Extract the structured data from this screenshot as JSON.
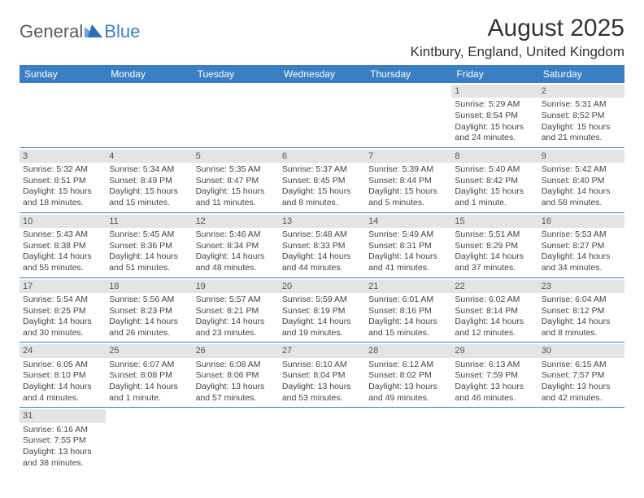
{
  "logo": {
    "text1": "General",
    "text2": "Blue"
  },
  "title": "August 2025",
  "location": "Kintbury, England, United Kingdom",
  "colors": {
    "header_bg": "#3a7fc4",
    "header_text": "#ffffff",
    "daynum_bg": "#e4e4e4",
    "border": "#3a7fc4",
    "text": "#444444"
  },
  "day_labels": [
    "Sunday",
    "Monday",
    "Tuesday",
    "Wednesday",
    "Thursday",
    "Friday",
    "Saturday"
  ],
  "weeks": [
    [
      null,
      null,
      null,
      null,
      null,
      {
        "n": "1",
        "sunrise": "Sunrise: 5:29 AM",
        "sunset": "Sunset: 8:54 PM",
        "daylight": "Daylight: 15 hours and 24 minutes."
      },
      {
        "n": "2",
        "sunrise": "Sunrise: 5:31 AM",
        "sunset": "Sunset: 8:52 PM",
        "daylight": "Daylight: 15 hours and 21 minutes."
      }
    ],
    [
      {
        "n": "3",
        "sunrise": "Sunrise: 5:32 AM",
        "sunset": "Sunset: 8:51 PM",
        "daylight": "Daylight: 15 hours and 18 minutes."
      },
      {
        "n": "4",
        "sunrise": "Sunrise: 5:34 AM",
        "sunset": "Sunset: 8:49 PM",
        "daylight": "Daylight: 15 hours and 15 minutes."
      },
      {
        "n": "5",
        "sunrise": "Sunrise: 5:35 AM",
        "sunset": "Sunset: 8:47 PM",
        "daylight": "Daylight: 15 hours and 11 minutes."
      },
      {
        "n": "6",
        "sunrise": "Sunrise: 5:37 AM",
        "sunset": "Sunset: 8:45 PM",
        "daylight": "Daylight: 15 hours and 8 minutes."
      },
      {
        "n": "7",
        "sunrise": "Sunrise: 5:39 AM",
        "sunset": "Sunset: 8:44 PM",
        "daylight": "Daylight: 15 hours and 5 minutes."
      },
      {
        "n": "8",
        "sunrise": "Sunrise: 5:40 AM",
        "sunset": "Sunset: 8:42 PM",
        "daylight": "Daylight: 15 hours and 1 minute."
      },
      {
        "n": "9",
        "sunrise": "Sunrise: 5:42 AM",
        "sunset": "Sunset: 8:40 PM",
        "daylight": "Daylight: 14 hours and 58 minutes."
      }
    ],
    [
      {
        "n": "10",
        "sunrise": "Sunrise: 5:43 AM",
        "sunset": "Sunset: 8:38 PM",
        "daylight": "Daylight: 14 hours and 55 minutes."
      },
      {
        "n": "11",
        "sunrise": "Sunrise: 5:45 AM",
        "sunset": "Sunset: 8:36 PM",
        "daylight": "Daylight: 14 hours and 51 minutes."
      },
      {
        "n": "12",
        "sunrise": "Sunrise: 5:46 AM",
        "sunset": "Sunset: 8:34 PM",
        "daylight": "Daylight: 14 hours and 48 minutes."
      },
      {
        "n": "13",
        "sunrise": "Sunrise: 5:48 AM",
        "sunset": "Sunset: 8:33 PM",
        "daylight": "Daylight: 14 hours and 44 minutes."
      },
      {
        "n": "14",
        "sunrise": "Sunrise: 5:49 AM",
        "sunset": "Sunset: 8:31 PM",
        "daylight": "Daylight: 14 hours and 41 minutes."
      },
      {
        "n": "15",
        "sunrise": "Sunrise: 5:51 AM",
        "sunset": "Sunset: 8:29 PM",
        "daylight": "Daylight: 14 hours and 37 minutes."
      },
      {
        "n": "16",
        "sunrise": "Sunrise: 5:53 AM",
        "sunset": "Sunset: 8:27 PM",
        "daylight": "Daylight: 14 hours and 34 minutes."
      }
    ],
    [
      {
        "n": "17",
        "sunrise": "Sunrise: 5:54 AM",
        "sunset": "Sunset: 8:25 PM",
        "daylight": "Daylight: 14 hours and 30 minutes."
      },
      {
        "n": "18",
        "sunrise": "Sunrise: 5:56 AM",
        "sunset": "Sunset: 8:23 PM",
        "daylight": "Daylight: 14 hours and 26 minutes."
      },
      {
        "n": "19",
        "sunrise": "Sunrise: 5:57 AM",
        "sunset": "Sunset: 8:21 PM",
        "daylight": "Daylight: 14 hours and 23 minutes."
      },
      {
        "n": "20",
        "sunrise": "Sunrise: 5:59 AM",
        "sunset": "Sunset: 8:19 PM",
        "daylight": "Daylight: 14 hours and 19 minutes."
      },
      {
        "n": "21",
        "sunrise": "Sunrise: 6:01 AM",
        "sunset": "Sunset: 8:16 PM",
        "daylight": "Daylight: 14 hours and 15 minutes."
      },
      {
        "n": "22",
        "sunrise": "Sunrise: 6:02 AM",
        "sunset": "Sunset: 8:14 PM",
        "daylight": "Daylight: 14 hours and 12 minutes."
      },
      {
        "n": "23",
        "sunrise": "Sunrise: 6:04 AM",
        "sunset": "Sunset: 8:12 PM",
        "daylight": "Daylight: 14 hours and 8 minutes."
      }
    ],
    [
      {
        "n": "24",
        "sunrise": "Sunrise: 6:05 AM",
        "sunset": "Sunset: 8:10 PM",
        "daylight": "Daylight: 14 hours and 4 minutes."
      },
      {
        "n": "25",
        "sunrise": "Sunrise: 6:07 AM",
        "sunset": "Sunset: 8:08 PM",
        "daylight": "Daylight: 14 hours and 1 minute."
      },
      {
        "n": "26",
        "sunrise": "Sunrise: 6:08 AM",
        "sunset": "Sunset: 8:06 PM",
        "daylight": "Daylight: 13 hours and 57 minutes."
      },
      {
        "n": "27",
        "sunrise": "Sunrise: 6:10 AM",
        "sunset": "Sunset: 8:04 PM",
        "daylight": "Daylight: 13 hours and 53 minutes."
      },
      {
        "n": "28",
        "sunrise": "Sunrise: 6:12 AM",
        "sunset": "Sunset: 8:02 PM",
        "daylight": "Daylight: 13 hours and 49 minutes."
      },
      {
        "n": "29",
        "sunrise": "Sunrise: 6:13 AM",
        "sunset": "Sunset: 7:59 PM",
        "daylight": "Daylight: 13 hours and 46 minutes."
      },
      {
        "n": "30",
        "sunrise": "Sunrise: 6:15 AM",
        "sunset": "Sunset: 7:57 PM",
        "daylight": "Daylight: 13 hours and 42 minutes."
      }
    ],
    [
      {
        "n": "31",
        "sunrise": "Sunrise: 6:16 AM",
        "sunset": "Sunset: 7:55 PM",
        "daylight": "Daylight: 13 hours and 38 minutes."
      },
      null,
      null,
      null,
      null,
      null,
      null
    ]
  ]
}
